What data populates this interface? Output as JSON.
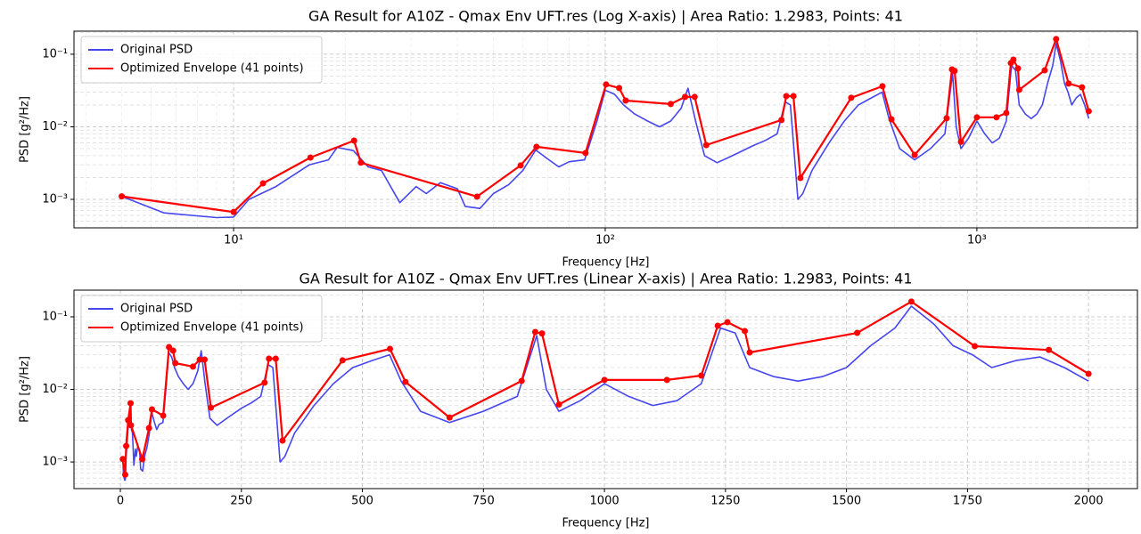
{
  "chart_data": [
    {
      "type": "line",
      "title": "GA Result for A10Z - Qmax Env UFT.res (Log X-axis) | Area Ratio: 1.2983, Points: 41",
      "xlabel": "Frequency [Hz]",
      "ylabel": "PSD [g²/Hz]",
      "xscale": "log",
      "yscale": "log",
      "grid": true,
      "legend": "upper left",
      "xlim": [
        3.72,
        2704
      ],
      "ylim": [
        0.000405,
        0.208
      ],
      "xticks": [
        {
          "value": 10,
          "label": "10¹"
        },
        {
          "value": 100,
          "label": "10²"
        },
        {
          "value": 1000,
          "label": "10³"
        }
      ],
      "xminorticks": [
        4,
        5,
        6,
        7,
        8,
        9,
        20,
        30,
        40,
        50,
        60,
        70,
        80,
        90,
        200,
        300,
        400,
        500,
        600,
        700,
        800,
        900,
        2000
      ],
      "yticks": [
        {
          "value": 0.001,
          "label": "10⁻³"
        },
        {
          "value": 0.01,
          "label": "10⁻²"
        },
        {
          "value": 0.1,
          "label": "10⁻¹"
        }
      ],
      "yminorticks": [
        0.0005,
        0.0006,
        0.0007,
        0.0008,
        0.0009,
        0.002,
        0.003,
        0.004,
        0.005,
        0.006,
        0.007,
        0.008,
        0.009,
        0.02,
        0.03,
        0.04,
        0.05,
        0.06,
        0.07,
        0.08,
        0.09,
        0.2
      ],
      "series": [
        {
          "name": "Original PSD",
          "color": "#4646ee",
          "markers": false,
          "x": [
            5,
            6.5,
            9,
            10,
            11,
            13,
            16,
            18,
            19,
            21,
            23,
            25,
            28,
            31,
            33,
            36,
            40,
            42,
            46,
            50,
            55,
            60,
            65,
            70,
            75,
            80,
            88,
            95,
            100,
            106,
            112,
            120,
            130,
            140,
            150,
            160,
            167,
            175,
            185,
            200,
            220,
            250,
            270,
            290,
            305,
            315,
            330,
            340,
            360,
            400,
            440,
            480,
            520,
            556,
            580,
            620,
            680,
            750,
            820,
            860,
            880,
            906,
            950,
            1000,
            1050,
            1100,
            1150,
            1200,
            1240,
            1270,
            1300,
            1350,
            1400,
            1450,
            1500,
            1550,
            1600,
            1634,
            1680,
            1720,
            1760,
            1800,
            1850,
            1900,
            1950,
            2000
          ],
          "values": [
            0.0011,
            0.00065,
            0.00056,
            0.00057,
            0.001,
            0.0015,
            0.003,
            0.0035,
            0.0052,
            0.0047,
            0.0028,
            0.0025,
            0.0009,
            0.0015,
            0.0012,
            0.0017,
            0.0014,
            0.0008,
            0.00075,
            0.0012,
            0.0016,
            0.0025,
            0.0048,
            0.0036,
            0.0028,
            0.0033,
            0.0035,
            0.012,
            0.032,
            0.028,
            0.02,
            0.015,
            0.012,
            0.01,
            0.012,
            0.018,
            0.034,
            0.012,
            0.004,
            0.0032,
            0.004,
            0.0055,
            0.0065,
            0.008,
            0.022,
            0.02,
            0.001,
            0.0012,
            0.0025,
            0.006,
            0.012,
            0.02,
            0.025,
            0.03,
            0.013,
            0.005,
            0.0035,
            0.005,
            0.008,
            0.055,
            0.01,
            0.005,
            0.007,
            0.012,
            0.008,
            0.006,
            0.007,
            0.012,
            0.07,
            0.06,
            0.02,
            0.015,
            0.013,
            0.015,
            0.02,
            0.04,
            0.07,
            0.14,
            0.08,
            0.04,
            0.03,
            0.02,
            0.025,
            0.028,
            0.02,
            0.013
          ]
        },
        {
          "name": "Optimized Envelope (41 points)",
          "color": "#ff0000",
          "markers": true,
          "x": [
            5,
            10,
            12,
            16.1,
            21.1,
            22,
            45.2,
            59.2,
            65.3,
            88.5,
            100.5,
            109,
            113.5,
            150,
            164,
            174,
            187,
            298,
            307,
            321,
            335,
            459,
            557,
            589,
            680,
            829,
            857,
            871,
            906,
            1000,
            1129,
            1200,
            1234,
            1254,
            1290,
            1300,
            1522,
            1634,
            1765,
            1918,
            2000
          ],
          "values": [
            0.0011,
            0.00067,
            0.00166,
            0.00377,
            0.00645,
            0.0032,
            0.00109,
            0.00293,
            0.0053,
            0.00435,
            0.0383,
            0.0342,
            0.023,
            0.0206,
            0.0258,
            0.0258,
            0.0056,
            0.0124,
            0.0265,
            0.0265,
            0.00197,
            0.0251,
            0.0362,
            0.0127,
            0.0041,
            0.0131,
            0.0618,
            0.059,
            0.0062,
            0.0135,
            0.0135,
            0.0155,
            0.0754,
            0.0843,
            0.0637,
            0.0323,
            0.06,
            0.162,
            0.0394,
            0.035,
            0.0164
          ]
        }
      ]
    },
    {
      "type": "line",
      "title": "GA Result for A10Z - Qmax Env UFT.res (Linear X-axis) | Area Ratio: 1.2983, Points: 41",
      "xlabel": "Frequency [Hz]",
      "ylabel": "PSD [g²/Hz]",
      "xscale": "linear",
      "yscale": "log",
      "grid": true,
      "legend": "upper left",
      "xlim": [
        -95.8,
        2101
      ],
      "ylim": [
        0.00043,
        0.233
      ],
      "xticks": [
        0,
        250,
        500,
        750,
        1000,
        1250,
        1500,
        1750,
        2000
      ],
      "yticks": [
        {
          "value": 0.001,
          "label": "10⁻³"
        },
        {
          "value": 0.01,
          "label": "10⁻²"
        },
        {
          "value": 0.1,
          "label": "10⁻¹"
        }
      ],
      "yminorticks": [
        0.0005,
        0.0006,
        0.0007,
        0.0008,
        0.0009,
        0.002,
        0.003,
        0.004,
        0.005,
        0.006,
        0.007,
        0.008,
        0.009,
        0.02,
        0.03,
        0.04,
        0.05,
        0.06,
        0.07,
        0.08,
        0.09,
        0.2
      ],
      "series": [
        {
          "name": "Original PSD",
          "color": "#4646ee",
          "markers": false,
          "x": [
            5,
            6.5,
            9,
            10,
            11,
            13,
            16,
            18,
            19,
            21,
            23,
            25,
            28,
            31,
            33,
            36,
            40,
            42,
            46,
            50,
            55,
            60,
            65,
            70,
            75,
            80,
            88,
            95,
            100,
            106,
            112,
            120,
            130,
            140,
            150,
            160,
            167,
            175,
            185,
            200,
            220,
            250,
            270,
            290,
            305,
            315,
            330,
            340,
            360,
            400,
            440,
            480,
            520,
            556,
            580,
            620,
            680,
            750,
            820,
            860,
            880,
            906,
            950,
            1000,
            1050,
            1100,
            1150,
            1200,
            1240,
            1270,
            1300,
            1350,
            1400,
            1450,
            1500,
            1550,
            1600,
            1634,
            1680,
            1720,
            1760,
            1800,
            1850,
            1900,
            1950,
            2000
          ],
          "values": [
            0.0011,
            0.00065,
            0.00056,
            0.00057,
            0.001,
            0.0015,
            0.003,
            0.0035,
            0.0052,
            0.0047,
            0.0028,
            0.0025,
            0.0009,
            0.0015,
            0.0012,
            0.0017,
            0.0014,
            0.0008,
            0.00075,
            0.0012,
            0.0016,
            0.0025,
            0.0048,
            0.0036,
            0.0028,
            0.0033,
            0.0035,
            0.012,
            0.032,
            0.028,
            0.02,
            0.015,
            0.012,
            0.01,
            0.012,
            0.018,
            0.034,
            0.012,
            0.004,
            0.0032,
            0.004,
            0.0055,
            0.0065,
            0.008,
            0.022,
            0.02,
            0.001,
            0.0012,
            0.0025,
            0.006,
            0.012,
            0.02,
            0.025,
            0.03,
            0.013,
            0.005,
            0.0035,
            0.005,
            0.008,
            0.055,
            0.01,
            0.005,
            0.007,
            0.012,
            0.008,
            0.006,
            0.007,
            0.012,
            0.07,
            0.06,
            0.02,
            0.015,
            0.013,
            0.015,
            0.02,
            0.04,
            0.07,
            0.14,
            0.08,
            0.04,
            0.03,
            0.02,
            0.025,
            0.028,
            0.02,
            0.013
          ]
        },
        {
          "name": "Optimized Envelope (41 points)",
          "color": "#ff0000",
          "markers": true,
          "x": [
            5,
            10,
            12,
            16.1,
            21.1,
            22,
            45.2,
            59.2,
            65.3,
            88.5,
            100.5,
            109,
            113.5,
            150,
            164,
            174,
            187,
            298,
            307,
            321,
            335,
            459,
            557,
            589,
            680,
            829,
            857,
            871,
            906,
            1000,
            1129,
            1200,
            1234,
            1254,
            1290,
            1300,
            1522,
            1634,
            1765,
            1918,
            2000
          ],
          "values": [
            0.0011,
            0.00067,
            0.00166,
            0.00377,
            0.00645,
            0.0032,
            0.00109,
            0.00293,
            0.0053,
            0.00435,
            0.0383,
            0.0342,
            0.023,
            0.0206,
            0.0258,
            0.0258,
            0.0056,
            0.0124,
            0.0265,
            0.0265,
            0.00197,
            0.0251,
            0.0362,
            0.0127,
            0.0041,
            0.0131,
            0.0618,
            0.059,
            0.0062,
            0.0135,
            0.0135,
            0.0155,
            0.0754,
            0.0843,
            0.0637,
            0.0323,
            0.06,
            0.162,
            0.0394,
            0.035,
            0.0164
          ]
        }
      ]
    }
  ]
}
